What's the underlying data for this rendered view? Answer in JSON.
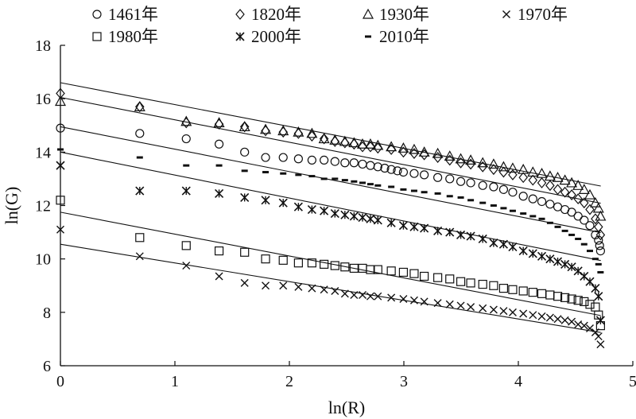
{
  "chart_data": {
    "type": "scatter",
    "xlabel": "ln(R)",
    "ylabel": "ln(G)",
    "xlim": [
      0,
      5
    ],
    "ylim": [
      6,
      18
    ],
    "xticks": [
      0,
      1,
      2,
      3,
      4,
      5
    ],
    "yticks": [
      6,
      8,
      10,
      12,
      14,
      16,
      18
    ],
    "grid": false,
    "legend_position": "top",
    "series": [
      {
        "name": "1461年",
        "marker": "circle",
        "points": [
          [
            0,
            14.9
          ],
          [
            0.693,
            14.7
          ],
          [
            1.099,
            14.5
          ],
          [
            1.386,
            14.3
          ],
          [
            1.609,
            14.0
          ],
          [
            1.792,
            13.8
          ],
          [
            1.946,
            13.8
          ],
          [
            2.079,
            13.75
          ],
          [
            2.197,
            13.7
          ],
          [
            2.303,
            13.7
          ],
          [
            2.398,
            13.65
          ],
          [
            2.485,
            13.6
          ],
          [
            2.565,
            13.6
          ],
          [
            2.639,
            13.55
          ],
          [
            2.708,
            13.5
          ],
          [
            2.773,
            13.45
          ],
          [
            2.833,
            13.4
          ],
          [
            2.89,
            13.35
          ],
          [
            2.944,
            13.3
          ],
          [
            2.996,
            13.25
          ],
          [
            3.09,
            13.2
          ],
          [
            3.178,
            13.15
          ],
          [
            3.296,
            13.05
          ],
          [
            3.401,
            13.0
          ],
          [
            3.497,
            12.9
          ],
          [
            3.584,
            12.85
          ],
          [
            3.689,
            12.75
          ],
          [
            3.784,
            12.7
          ],
          [
            3.871,
            12.6
          ],
          [
            3.951,
            12.5
          ],
          [
            4.043,
            12.35
          ],
          [
            4.127,
            12.25
          ],
          [
            4.205,
            12.15
          ],
          [
            4.277,
            12.05
          ],
          [
            4.344,
            11.95
          ],
          [
            4.407,
            11.85
          ],
          [
            4.466,
            11.75
          ],
          [
            4.522,
            11.6
          ],
          [
            4.575,
            11.45
          ],
          [
            4.625,
            11.25
          ],
          [
            4.673,
            10.9
          ],
          [
            4.7,
            10.7
          ],
          [
            4.71,
            10.5
          ],
          [
            4.718,
            10.3
          ]
        ],
        "fit": {
          "intercept": 14.95,
          "slope": -0.84
        }
      },
      {
        "name": "1820年",
        "marker": "diamond",
        "points": [
          [
            0,
            16.2
          ],
          [
            0.693,
            15.7
          ],
          [
            1.099,
            15.1
          ],
          [
            1.386,
            15.05
          ],
          [
            1.609,
            14.95
          ],
          [
            1.792,
            14.8
          ],
          [
            1.946,
            14.75
          ],
          [
            2.079,
            14.7
          ],
          [
            2.197,
            14.6
          ],
          [
            2.303,
            14.5
          ],
          [
            2.398,
            14.4
          ],
          [
            2.485,
            14.35
          ],
          [
            2.565,
            14.3
          ],
          [
            2.639,
            14.2
          ],
          [
            2.708,
            14.2
          ],
          [
            2.773,
            14.15
          ],
          [
            2.89,
            14.1
          ],
          [
            2.996,
            14.0
          ],
          [
            3.09,
            13.95
          ],
          [
            3.178,
            13.9
          ],
          [
            3.296,
            13.8
          ],
          [
            3.401,
            13.7
          ],
          [
            3.497,
            13.6
          ],
          [
            3.584,
            13.55
          ],
          [
            3.689,
            13.45
          ],
          [
            3.784,
            13.35
          ],
          [
            3.871,
            13.25
          ],
          [
            3.951,
            13.15
          ],
          [
            4.043,
            13.05
          ],
          [
            4.127,
            12.95
          ],
          [
            4.205,
            12.85
          ],
          [
            4.277,
            12.75
          ],
          [
            4.344,
            12.6
          ],
          [
            4.407,
            12.5
          ],
          [
            4.466,
            12.4
          ],
          [
            4.522,
            12.25
          ],
          [
            4.575,
            12.1
          ],
          [
            4.625,
            11.85
          ],
          [
            4.673,
            11.5
          ],
          [
            4.7,
            11.2
          ],
          [
            4.718,
            10.9
          ]
        ],
        "fit": {
          "intercept": 16.05,
          "slope": -0.84
        }
      },
      {
        "name": "1930年",
        "marker": "triangle",
        "points": [
          [
            0,
            15.9
          ],
          [
            0.693,
            15.7
          ],
          [
            1.099,
            15.15
          ],
          [
            1.386,
            15.1
          ],
          [
            1.609,
            14.95
          ],
          [
            1.792,
            14.85
          ],
          [
            1.946,
            14.8
          ],
          [
            2.079,
            14.75
          ],
          [
            2.197,
            14.7
          ],
          [
            2.303,
            14.5
          ],
          [
            2.398,
            14.45
          ],
          [
            2.485,
            14.4
          ],
          [
            2.565,
            14.35
          ],
          [
            2.639,
            14.3
          ],
          [
            2.708,
            14.3
          ],
          [
            2.773,
            14.25
          ],
          [
            2.89,
            14.2
          ],
          [
            2.996,
            14.15
          ],
          [
            3.09,
            14.1
          ],
          [
            3.178,
            14.0
          ],
          [
            3.296,
            13.95
          ],
          [
            3.401,
            13.85
          ],
          [
            3.497,
            13.75
          ],
          [
            3.584,
            13.7
          ],
          [
            3.689,
            13.6
          ],
          [
            3.784,
            13.55
          ],
          [
            3.871,
            13.45
          ],
          [
            3.951,
            13.4
          ],
          [
            4.043,
            13.35
          ],
          [
            4.127,
            13.25
          ],
          [
            4.205,
            13.2
          ],
          [
            4.277,
            13.1
          ],
          [
            4.344,
            13.05
          ],
          [
            4.407,
            12.95
          ],
          [
            4.466,
            12.85
          ],
          [
            4.522,
            12.75
          ],
          [
            4.575,
            12.6
          ],
          [
            4.625,
            12.4
          ],
          [
            4.673,
            12.1
          ],
          [
            4.7,
            11.9
          ],
          [
            4.718,
            11.6
          ]
        ],
        "fit": {
          "intercept": 16.6,
          "slope": -0.82
        }
      },
      {
        "name": "1970年",
        "marker": "x",
        "points": [
          [
            0,
            11.1
          ],
          [
            0.693,
            10.1
          ],
          [
            1.099,
            9.75
          ],
          [
            1.386,
            9.35
          ],
          [
            1.609,
            9.1
          ],
          [
            1.792,
            9.0
          ],
          [
            1.946,
            9.0
          ],
          [
            2.079,
            8.95
          ],
          [
            2.197,
            8.9
          ],
          [
            2.303,
            8.85
          ],
          [
            2.398,
            8.8
          ],
          [
            2.485,
            8.7
          ],
          [
            2.565,
            8.65
          ],
          [
            2.639,
            8.65
          ],
          [
            2.708,
            8.6
          ],
          [
            2.773,
            8.6
          ],
          [
            2.89,
            8.55
          ],
          [
            2.996,
            8.5
          ],
          [
            3.09,
            8.45
          ],
          [
            3.178,
            8.4
          ],
          [
            3.296,
            8.35
          ],
          [
            3.401,
            8.3
          ],
          [
            3.497,
            8.25
          ],
          [
            3.584,
            8.2
          ],
          [
            3.689,
            8.15
          ],
          [
            3.784,
            8.1
          ],
          [
            3.871,
            8.05
          ],
          [
            3.951,
            8.0
          ],
          [
            4.043,
            7.95
          ],
          [
            4.127,
            7.9
          ],
          [
            4.205,
            7.85
          ],
          [
            4.277,
            7.8
          ],
          [
            4.344,
            7.75
          ],
          [
            4.407,
            7.7
          ],
          [
            4.466,
            7.65
          ],
          [
            4.522,
            7.55
          ],
          [
            4.575,
            7.5
          ],
          [
            4.625,
            7.4
          ],
          [
            4.673,
            7.25
          ],
          [
            4.7,
            7.1
          ],
          [
            4.718,
            6.8
          ]
        ],
        "fit": {
          "intercept": 10.55,
          "slope": -0.7
        }
      },
      {
        "name": "1980年",
        "marker": "square",
        "points": [
          [
            0,
            12.2
          ],
          [
            0.693,
            10.8
          ],
          [
            1.099,
            10.5
          ],
          [
            1.386,
            10.3
          ],
          [
            1.609,
            10.25
          ],
          [
            1.792,
            10.0
          ],
          [
            1.946,
            9.95
          ],
          [
            2.079,
            9.85
          ],
          [
            2.197,
            9.85
          ],
          [
            2.303,
            9.8
          ],
          [
            2.398,
            9.75
          ],
          [
            2.485,
            9.7
          ],
          [
            2.565,
            9.65
          ],
          [
            2.639,
            9.65
          ],
          [
            2.708,
            9.6
          ],
          [
            2.773,
            9.6
          ],
          [
            2.89,
            9.55
          ],
          [
            2.996,
            9.5
          ],
          [
            3.09,
            9.45
          ],
          [
            3.178,
            9.35
          ],
          [
            3.296,
            9.3
          ],
          [
            3.401,
            9.25
          ],
          [
            3.497,
            9.15
          ],
          [
            3.584,
            9.1
          ],
          [
            3.689,
            9.05
          ],
          [
            3.784,
            9.0
          ],
          [
            3.871,
            8.9
          ],
          [
            3.951,
            8.85
          ],
          [
            4.043,
            8.8
          ],
          [
            4.127,
            8.75
          ],
          [
            4.205,
            8.7
          ],
          [
            4.277,
            8.65
          ],
          [
            4.344,
            8.6
          ],
          [
            4.407,
            8.55
          ],
          [
            4.466,
            8.5
          ],
          [
            4.522,
            8.45
          ],
          [
            4.575,
            8.4
          ],
          [
            4.625,
            8.3
          ],
          [
            4.673,
            8.2
          ],
          [
            4.7,
            7.9
          ],
          [
            4.718,
            7.5
          ]
        ],
        "fit": {
          "intercept": 11.75,
          "slope": -0.82
        }
      },
      {
        "name": "2000年",
        "marker": "star",
        "points": [
          [
            0,
            13.5
          ],
          [
            0.693,
            12.55
          ],
          [
            1.099,
            12.55
          ],
          [
            1.386,
            12.45
          ],
          [
            1.609,
            12.3
          ],
          [
            1.792,
            12.2
          ],
          [
            1.946,
            12.1
          ],
          [
            2.079,
            11.95
          ],
          [
            2.197,
            11.85
          ],
          [
            2.303,
            11.8
          ],
          [
            2.398,
            11.7
          ],
          [
            2.485,
            11.65
          ],
          [
            2.565,
            11.6
          ],
          [
            2.639,
            11.55
          ],
          [
            2.708,
            11.5
          ],
          [
            2.773,
            11.45
          ],
          [
            2.89,
            11.35
          ],
          [
            2.996,
            11.25
          ],
          [
            3.09,
            11.2
          ],
          [
            3.178,
            11.15
          ],
          [
            3.296,
            11.05
          ],
          [
            3.401,
            11.0
          ],
          [
            3.497,
            10.9
          ],
          [
            3.584,
            10.85
          ],
          [
            3.689,
            10.75
          ],
          [
            3.784,
            10.6
          ],
          [
            3.871,
            10.55
          ],
          [
            3.951,
            10.45
          ],
          [
            4.043,
            10.3
          ],
          [
            4.127,
            10.2
          ],
          [
            4.205,
            10.1
          ],
          [
            4.277,
            10.0
          ],
          [
            4.344,
            9.9
          ],
          [
            4.407,
            9.8
          ],
          [
            4.466,
            9.7
          ],
          [
            4.522,
            9.55
          ],
          [
            4.575,
            9.35
          ],
          [
            4.625,
            9.15
          ],
          [
            4.673,
            8.9
          ],
          [
            4.7,
            8.6
          ],
          [
            4.718,
            7.7
          ]
        ],
        "fit": {
          "intercept": 14.0,
          "slope": -0.86
        }
      },
      {
        "name": "2010年",
        "marker": "dash",
        "points": [
          [
            0,
            14.1
          ],
          [
            0.693,
            13.8
          ],
          [
            1.099,
            13.5
          ],
          [
            1.386,
            13.5
          ],
          [
            1.609,
            13.3
          ],
          [
            1.792,
            13.25
          ],
          [
            1.946,
            13.2
          ],
          [
            2.079,
            13.15
          ],
          [
            2.197,
            13.1
          ],
          [
            2.303,
            13.0
          ],
          [
            2.398,
            13.0
          ],
          [
            2.485,
            12.95
          ],
          [
            2.565,
            12.9
          ],
          [
            2.639,
            12.85
          ],
          [
            2.708,
            12.8
          ],
          [
            2.773,
            12.75
          ],
          [
            2.89,
            12.7
          ],
          [
            2.996,
            12.6
          ],
          [
            3.09,
            12.55
          ],
          [
            3.178,
            12.5
          ],
          [
            3.296,
            12.45
          ],
          [
            3.401,
            12.35
          ],
          [
            3.497,
            12.3
          ],
          [
            3.584,
            12.2
          ],
          [
            3.689,
            12.1
          ],
          [
            3.784,
            12.0
          ],
          [
            3.871,
            11.9
          ],
          [
            3.951,
            11.8
          ],
          [
            4.043,
            11.7
          ],
          [
            4.127,
            11.6
          ],
          [
            4.205,
            11.5
          ],
          [
            4.277,
            11.35
          ],
          [
            4.344,
            11.2
          ],
          [
            4.407,
            11.05
          ],
          [
            4.466,
            10.9
          ],
          [
            4.522,
            10.75
          ],
          [
            4.575,
            10.55
          ],
          [
            4.625,
            10.3
          ],
          [
            4.673,
            10.0
          ],
          [
            4.7,
            9.8
          ],
          [
            4.718,
            9.5
          ]
        ]
      }
    ]
  }
}
